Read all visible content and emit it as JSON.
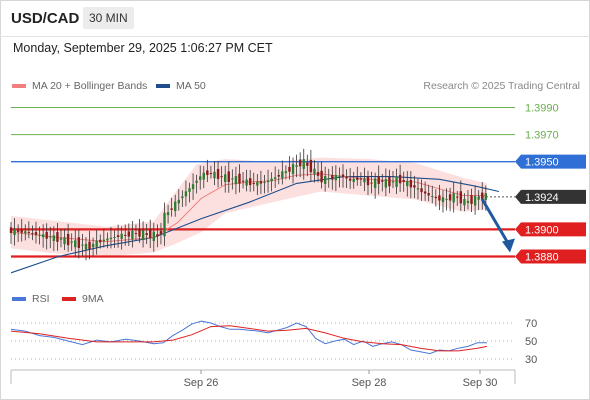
{
  "header": {
    "symbol": "USD/CAD",
    "timeframe": "30 MIN"
  },
  "datetime": "Monday, September 29, 2025 1:06:27 PM CET",
  "legend": {
    "ma20_label": "MA 20 + Bollinger Bands",
    "ma20_color": "#f08080",
    "ma50_label": "MA 50",
    "ma50_color": "#1f4e8c",
    "rsi_label": "RSI",
    "rsi_color": "#4a78d8",
    "ma9_label": "9MA",
    "ma9_color": "#dd2222"
  },
  "credit": "Research © 2025 Trading Central",
  "chart_data": [
    {
      "type": "candlestick",
      "price_range": [
        1.386,
        1.3995
      ],
      "levels": [
        {
          "value": 1.399,
          "label": "1.3990",
          "kind": "target",
          "color": "#6ab04c"
        },
        {
          "value": 1.397,
          "label": "1.3970",
          "kind": "target",
          "color": "#6ab04c"
        },
        {
          "value": 1.395,
          "label": "1.3950",
          "kind": "pivot",
          "color": "#2f6fd6"
        },
        {
          "value": 1.3924,
          "label": "1.3924",
          "kind": "last-price",
          "color": "#333333"
        },
        {
          "value": 1.39,
          "label": "1.3900",
          "kind": "support",
          "color": "#e02020"
        },
        {
          "value": 1.388,
          "label": "1.3880",
          "kind": "support",
          "color": "#e02020"
        }
      ],
      "x_ticks": [
        "Sep 26",
        "Sep 28",
        "Sep 30"
      ],
      "path": [
        [
          0,
          1.3899
        ],
        [
          8,
          1.3898
        ],
        [
          16,
          1.3895
        ],
        [
          22,
          1.3893
        ],
        [
          28,
          1.389
        ],
        [
          34,
          1.3887
        ],
        [
          38,
          1.3891
        ],
        [
          46,
          1.3895
        ],
        [
          54,
          1.3897
        ],
        [
          60,
          1.3896
        ],
        [
          64,
          1.3895
        ],
        [
          66,
          1.391
        ],
        [
          70,
          1.3918
        ],
        [
          74,
          1.3926
        ],
        [
          78,
          1.3933
        ],
        [
          80,
          1.3938
        ],
        [
          84,
          1.3942
        ],
        [
          88,
          1.394
        ],
        [
          92,
          1.3938
        ],
        [
          96,
          1.3937
        ],
        [
          100,
          1.3935
        ],
        [
          104,
          1.3934
        ],
        [
          108,
          1.3935
        ],
        [
          112,
          1.3938
        ],
        [
          116,
          1.3942
        ],
        [
          120,
          1.3946
        ],
        [
          124,
          1.395
        ],
        [
          128,
          1.3944
        ],
        [
          132,
          1.3937
        ],
        [
          136,
          1.3938
        ],
        [
          140,
          1.394
        ],
        [
          144,
          1.3936
        ],
        [
          148,
          1.3938
        ],
        [
          152,
          1.3934
        ],
        [
          156,
          1.3936
        ],
        [
          160,
          1.3934
        ],
        [
          164,
          1.3937
        ],
        [
          168,
          1.3934
        ],
        [
          172,
          1.393
        ],
        [
          176,
          1.3926
        ],
        [
          180,
          1.3923
        ],
        [
          184,
          1.3922
        ],
        [
          188,
          1.3925
        ],
        [
          192,
          1.392
        ],
        [
          196,
          1.3922
        ],
        [
          200,
          1.3925
        ]
      ],
      "ma20": [
        [
          0,
          1.3898
        ],
        [
          20,
          1.3894
        ],
        [
          40,
          1.3891
        ],
        [
          60,
          1.3894
        ],
        [
          70,
          1.3905
        ],
        [
          80,
          1.3923
        ],
        [
          90,
          1.3933
        ],
        [
          100,
          1.3935
        ],
        [
          110,
          1.3936
        ],
        [
          120,
          1.394
        ],
        [
          130,
          1.3941
        ],
        [
          140,
          1.3939
        ],
        [
          150,
          1.3937
        ],
        [
          160,
          1.3936
        ],
        [
          170,
          1.3935
        ],
        [
          180,
          1.393
        ],
        [
          190,
          1.3925
        ],
        [
          200,
          1.3925
        ]
      ],
      "ma50": [
        [
          0,
          1.3868
        ],
        [
          20,
          1.388
        ],
        [
          40,
          1.3888
        ],
        [
          60,
          1.3894
        ],
        [
          80,
          1.3908
        ],
        [
          100,
          1.392
        ],
        [
          120,
          1.3934
        ],
        [
          140,
          1.3939
        ],
        [
          160,
          1.3939
        ],
        [
          180,
          1.3937
        ],
        [
          195,
          1.3932
        ],
        [
          205,
          1.3928
        ]
      ],
      "bollinger_upper": [
        [
          0,
          1.391
        ],
        [
          20,
          1.3906
        ],
        [
          40,
          1.3902
        ],
        [
          60,
          1.3906
        ],
        [
          68,
          1.3925
        ],
        [
          78,
          1.3948
        ],
        [
          90,
          1.3952
        ],
        [
          110,
          1.395
        ],
        [
          130,
          1.3953
        ],
        [
          150,
          1.3952
        ],
        [
          170,
          1.3949
        ],
        [
          190,
          1.3938
        ],
        [
          200,
          1.3934
        ]
      ],
      "bollinger_lower": [
        [
          0,
          1.3886
        ],
        [
          20,
          1.3882
        ],
        [
          40,
          1.388
        ],
        [
          60,
          1.3883
        ],
        [
          70,
          1.389
        ],
        [
          80,
          1.3898
        ],
        [
          90,
          1.3912
        ],
        [
          110,
          1.392
        ],
        [
          130,
          1.3928
        ],
        [
          150,
          1.3925
        ],
        [
          170,
          1.3922
        ],
        [
          190,
          1.3913
        ],
        [
          200,
          1.3915
        ]
      ],
      "forecast": {
        "from": 1.3924,
        "to": 1.388,
        "direction": "down"
      }
    },
    {
      "type": "line",
      "title": "RSI",
      "ylim": [
        20,
        80
      ],
      "yticks": [
        70,
        50,
        30
      ],
      "rsi": [
        [
          0,
          63
        ],
        [
          6,
          61
        ],
        [
          12,
          56
        ],
        [
          18,
          54
        ],
        [
          24,
          50
        ],
        [
          30,
          46
        ],
        [
          36,
          51
        ],
        [
          42,
          49
        ],
        [
          48,
          52
        ],
        [
          54,
          50
        ],
        [
          60,
          47
        ],
        [
          64,
          48
        ],
        [
          68,
          56
        ],
        [
          72,
          62
        ],
        [
          76,
          69
        ],
        [
          80,
          72
        ],
        [
          84,
          70
        ],
        [
          88,
          66
        ],
        [
          92,
          63
        ],
        [
          96,
          63
        ],
        [
          100,
          62
        ],
        [
          104,
          61
        ],
        [
          108,
          59
        ],
        [
          112,
          62
        ],
        [
          116,
          65
        ],
        [
          120,
          70
        ],
        [
          124,
          66
        ],
        [
          128,
          53
        ],
        [
          132,
          47
        ],
        [
          136,
          50
        ],
        [
          140,
          52
        ],
        [
          144,
          46
        ],
        [
          148,
          50
        ],
        [
          152,
          44
        ],
        [
          156,
          47
        ],
        [
          160,
          49
        ],
        [
          164,
          46
        ],
        [
          168,
          40
        ],
        [
          172,
          38
        ],
        [
          176,
          36
        ],
        [
          180,
          40
        ],
        [
          184,
          39
        ],
        [
          188,
          42
        ],
        [
          192,
          44
        ],
        [
          196,
          48
        ],
        [
          200,
          48
        ]
      ],
      "ma9": [
        [
          0,
          61
        ],
        [
          12,
          58
        ],
        [
          24,
          53
        ],
        [
          36,
          49
        ],
        [
          48,
          49
        ],
        [
          60,
          49
        ],
        [
          68,
          51
        ],
        [
          76,
          57
        ],
        [
          84,
          66
        ],
        [
          92,
          67
        ],
        [
          100,
          64
        ],
        [
          108,
          61
        ],
        [
          116,
          62
        ],
        [
          124,
          64
        ],
        [
          132,
          59
        ],
        [
          140,
          53
        ],
        [
          148,
          49
        ],
        [
          156,
          47
        ],
        [
          164,
          46
        ],
        [
          172,
          42
        ],
        [
          180,
          39
        ],
        [
          188,
          39
        ],
        [
          196,
          42
        ],
        [
          200,
          44
        ]
      ]
    }
  ]
}
